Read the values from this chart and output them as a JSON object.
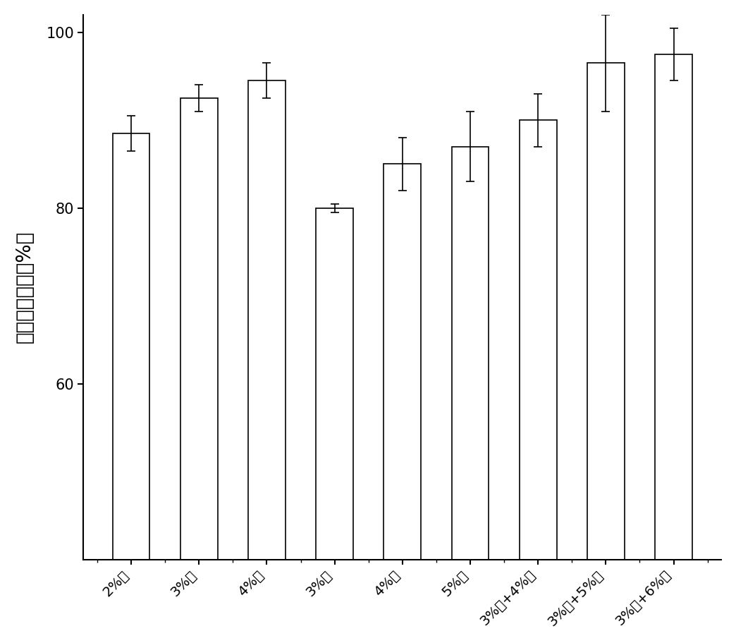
{
  "categories": [
    "2%铝",
    "3%铝",
    "4%铝",
    "3%铜",
    "4%铜",
    "5%铜",
    "3%铝+4%铜",
    "3%铝+5%铜",
    "3%铝+6%铜"
  ],
  "values": [
    88.5,
    92.5,
    94.5,
    80.0,
    85.0,
    87.0,
    90.0,
    96.5,
    97.5
  ],
  "errors": [
    2.0,
    1.5,
    2.0,
    0.5,
    3.0,
    4.0,
    3.0,
    5.5,
    3.0
  ],
  "bar_facecolor": "#ffffff",
  "bar_edgecolor": "#000000",
  "bar_linewidth": 1.2,
  "errorbar_color": "#000000",
  "errorbar_capsize": 4,
  "errorbar_linewidth": 1.2,
  "ylabel": "磷去除百分比（%）",
  "ylim": [
    40,
    102
  ],
  "yticks": [
    60,
    80,
    100
  ],
  "background_color": "#ffffff",
  "ylabel_fontsize": 20,
  "tick_fontsize": 15,
  "xtick_fontsize": 14,
  "bar_width": 0.55,
  "spine_linewidth": 1.5
}
